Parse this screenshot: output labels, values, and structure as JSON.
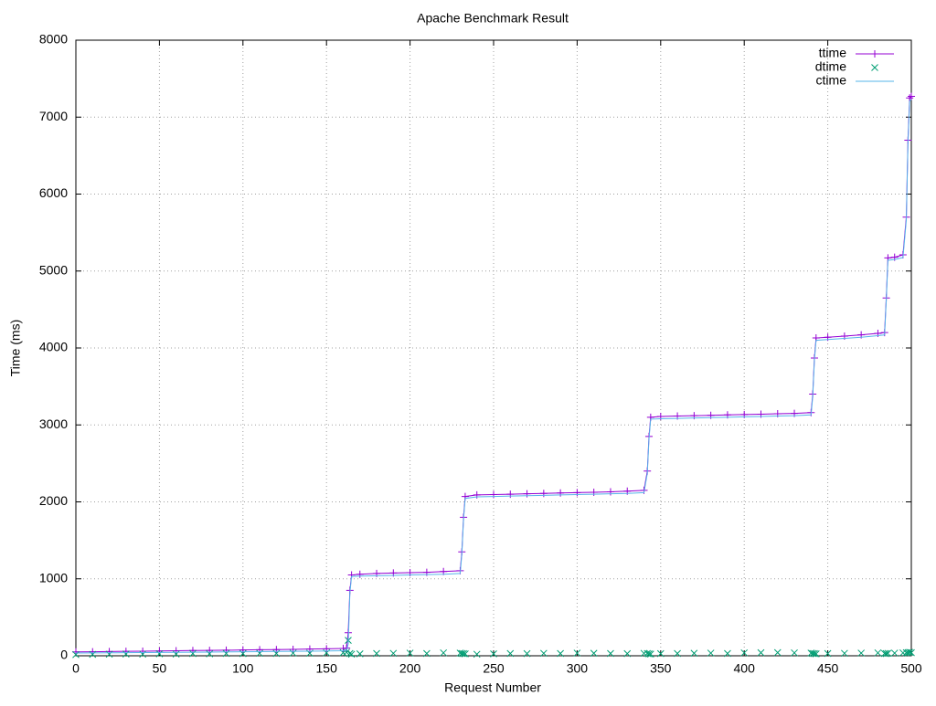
{
  "chart_data": {
    "type": "line",
    "title": "Apache Benchmark Result",
    "x_label": "Request Number",
    "y_label": "Time (ms)",
    "xlim": [
      0,
      500
    ],
    "xticks": [
      0,
      50,
      100,
      150,
      200,
      250,
      300,
      350,
      400,
      450,
      500
    ],
    "ylim": [
      0,
      8000
    ],
    "yticks": [
      0,
      1000,
      2000,
      3000,
      4000,
      5000,
      6000,
      7000,
      8000
    ],
    "grid": true,
    "legend": "top-right",
    "x": [
      0,
      10,
      20,
      30,
      40,
      50,
      60,
      70,
      80,
      90,
      100,
      110,
      120,
      130,
      140,
      150,
      160,
      162,
      163,
      164,
      165,
      170,
      180,
      190,
      200,
      210,
      220,
      230,
      231,
      232,
      233,
      240,
      250,
      260,
      270,
      280,
      290,
      300,
      310,
      320,
      330,
      340,
      342,
      343,
      344,
      350,
      360,
      370,
      380,
      390,
      400,
      410,
      420,
      430,
      440,
      441,
      442,
      443,
      450,
      460,
      470,
      480,
      484,
      485,
      486,
      490,
      495,
      497,
      498,
      499,
      500
    ],
    "series": [
      {
        "name": "ttime",
        "color": "#9400d3",
        "style": "linespoints",
        "marker": "plus",
        "values": [
          50,
          52,
          55,
          58,
          60,
          63,
          65,
          68,
          70,
          72,
          75,
          78,
          80,
          83,
          87,
          90,
          95,
          100,
          300,
          850,
          1050,
          1060,
          1070,
          1075,
          1080,
          1085,
          1095,
          1105,
          1350,
          1800,
          2070,
          2090,
          2095,
          2100,
          2105,
          2110,
          2115,
          2120,
          2125,
          2130,
          2140,
          2150,
          2400,
          2850,
          3100,
          3110,
          3115,
          3120,
          3125,
          3130,
          3135,
          3140,
          3145,
          3150,
          3160,
          3400,
          3870,
          4130,
          4140,
          4155,
          4170,
          4190,
          4200,
          4650,
          5170,
          5180,
          5210,
          5700,
          6700,
          7250,
          7270
        ]
      },
      {
        "name": "dtime",
        "color": "#009e73",
        "style": "points",
        "marker": "cross",
        "values": [
          15,
          18,
          20,
          22,
          20,
          25,
          22,
          28,
          25,
          30,
          28,
          32,
          30,
          35,
          33,
          38,
          40,
          45,
          200,
          30,
          20,
          25,
          30,
          32,
          35,
          30,
          38,
          35,
          30,
          28,
          25,
          20,
          25,
          30,
          28,
          32,
          30,
          35,
          33,
          30,
          28,
          32,
          30,
          25,
          22,
          28,
          30,
          33,
          35,
          30,
          38,
          40,
          42,
          38,
          35,
          30,
          28,
          25,
          30,
          32,
          35,
          38,
          30,
          28,
          32,
          35,
          38,
          40,
          42,
          45,
          40
        ]
      },
      {
        "name": "ctime",
        "color": "#56b4e9",
        "style": "lines",
        "values": [
          35,
          37,
          38,
          40,
          42,
          43,
          45,
          46,
          48,
          50,
          52,
          54,
          56,
          58,
          60,
          62,
          65,
          70,
          150,
          820,
          1030,
          1035,
          1040,
          1045,
          1050,
          1055,
          1060,
          1070,
          1320,
          1770,
          2045,
          2065,
          2070,
          2075,
          2080,
          2085,
          2090,
          2095,
          2100,
          2105,
          2110,
          2120,
          2370,
          2820,
          3075,
          3080,
          3085,
          3090,
          3095,
          3100,
          3105,
          3110,
          3115,
          3120,
          3130,
          3370,
          3840,
          4100,
          4110,
          4125,
          4140,
          4160,
          4170,
          4620,
          5140,
          5150,
          5175,
          5660,
          6660,
          7210,
          7230
        ]
      }
    ]
  }
}
